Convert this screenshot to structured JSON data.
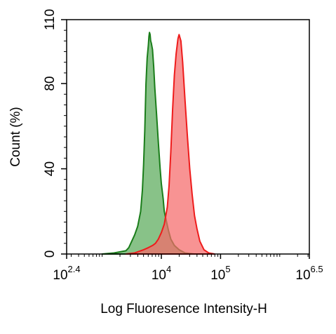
{
  "chart_data": {
    "type": "area",
    "title": "",
    "xlabel": "Log Fluoresence Intensity-H",
    "ylabel": "Count  (%)",
    "x_scale": "log10",
    "xlim_log10": [
      2.4,
      6.5
    ],
    "ylim": [
      0,
      110
    ],
    "x_ticks": [
      {
        "base": "10",
        "exp": "2.4",
        "log10": 2.4
      },
      {
        "base": "10",
        "exp": "4",
        "log10": 4.0
      },
      {
        "base": "10",
        "exp": "5",
        "log10": 5.0
      },
      {
        "base": "10",
        "exp": "6.5",
        "log10": 6.5
      }
    ],
    "y_ticks": [
      {
        "label": "0",
        "value": 0
      },
      {
        "label": "40",
        "value": 40
      },
      {
        "label": "80",
        "value": 80
      },
      {
        "label": "110",
        "value": 110
      }
    ],
    "grid": false,
    "legend": "none",
    "series": [
      {
        "fill": "#5aaa5a",
        "stroke": "#1a7d1a",
        "points": [
          [
            3.0,
            0
          ],
          [
            3.2,
            0.5
          ],
          [
            3.4,
            1.5
          ],
          [
            3.45,
            3
          ],
          [
            3.5,
            6
          ],
          [
            3.55,
            9
          ],
          [
            3.6,
            13
          ],
          [
            3.65,
            20
          ],
          [
            3.68,
            30
          ],
          [
            3.7,
            42
          ],
          [
            3.72,
            58
          ],
          [
            3.74,
            80
          ],
          [
            3.76,
            92
          ],
          [
            3.78,
            98
          ],
          [
            3.79,
            102
          ],
          [
            3.8,
            104
          ],
          [
            3.81,
            103
          ],
          [
            3.82,
            100
          ],
          [
            3.83,
            99
          ],
          [
            3.85,
            96
          ],
          [
            3.87,
            88
          ],
          [
            3.89,
            78
          ],
          [
            3.92,
            65
          ],
          [
            3.95,
            52
          ],
          [
            3.98,
            40
          ],
          [
            4.0,
            33
          ],
          [
            4.03,
            26
          ],
          [
            4.05,
            20
          ],
          [
            4.08,
            16
          ],
          [
            4.12,
            11
          ],
          [
            4.16,
            7
          ],
          [
            4.22,
            4
          ],
          [
            4.3,
            2
          ],
          [
            4.4,
            0.5
          ],
          [
            4.55,
            0
          ]
        ]
      },
      {
        "fill": "#f56a6a",
        "stroke": "#ee1c1c",
        "points": [
          [
            3.4,
            0
          ],
          [
            3.55,
            0.5
          ],
          [
            3.65,
            1.5
          ],
          [
            3.7,
            2
          ],
          [
            3.78,
            3
          ],
          [
            3.85,
            4
          ],
          [
            3.9,
            5
          ],
          [
            3.95,
            7
          ],
          [
            4.0,
            10
          ],
          [
            4.05,
            14
          ],
          [
            4.1,
            22
          ],
          [
            4.13,
            32
          ],
          [
            4.16,
            48
          ],
          [
            4.19,
            68
          ],
          [
            4.22,
            84
          ],
          [
            4.25,
            94
          ],
          [
            4.28,
            101
          ],
          [
            4.3,
            103
          ],
          [
            4.33,
            100
          ],
          [
            4.36,
            90
          ],
          [
            4.4,
            72
          ],
          [
            4.44,
            55
          ],
          [
            4.48,
            40
          ],
          [
            4.52,
            28
          ],
          [
            4.56,
            18
          ],
          [
            4.6,
            12
          ],
          [
            4.65,
            6
          ],
          [
            4.72,
            2
          ],
          [
            4.8,
            0.5
          ],
          [
            4.9,
            0
          ]
        ]
      }
    ]
  }
}
